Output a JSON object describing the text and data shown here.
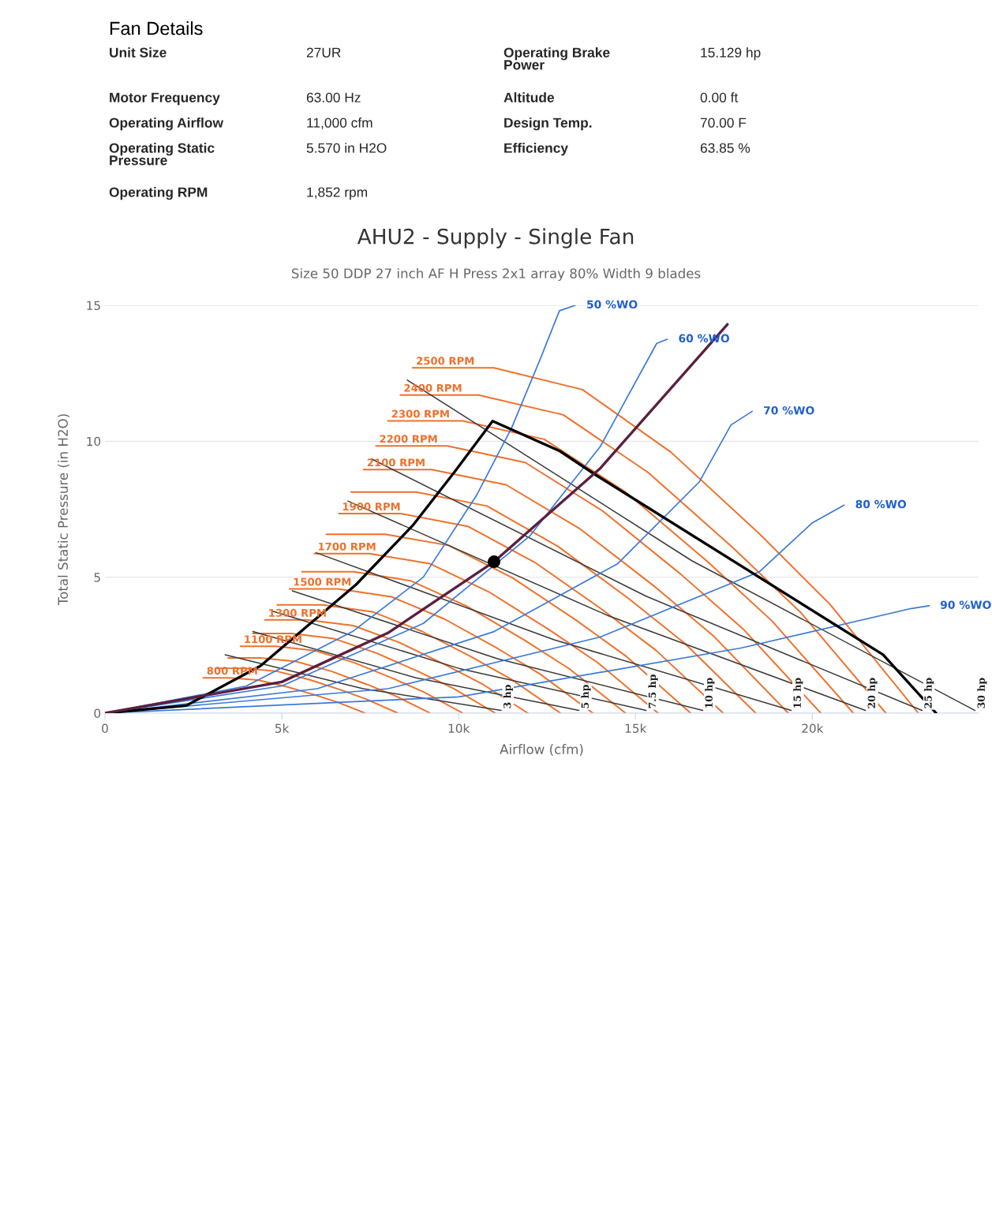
{
  "chart_data": {
    "type": "line",
    "title": "AHU2 - Supply - Single Fan",
    "subtitle": "Size 50 DDP 27 inch AF H Press 2x1 array 80% Width 9 blades",
    "xlabel": "Airflow (cfm)",
    "ylabel": "Total Static Pressure (in H2O)",
    "xlim": [
      0,
      24700
    ],
    "ylim": [
      0,
      15
    ],
    "xticks": [
      0,
      {
        "value": 5000,
        "label": "5k"
      },
      {
        "value": 10000,
        "label": "10k"
      },
      {
        "value": 15000,
        "label": "15k"
      },
      {
        "value": 20000,
        "label": "20k"
      }
    ],
    "yticks": [
      0,
      5,
      10,
      15
    ],
    "grid": "y",
    "annotations": [
      "Fan Details",
      "Unit Size",
      "27UR",
      "Motor Frequency",
      "63.00 Hz",
      "Operating Airflow",
      "11,000 cfm",
      "Operating Static Pressure",
      "5.570 in H2O",
      "Operating RPM",
      "1,852 rpm",
      "Operating Brake Power",
      "15.129 hp",
      "Altitude",
      "0.00 ft",
      "Design Temp.",
      "70.00 F",
      "Efficiency",
      "63.85 %"
    ],
    "series": [
      {
        "name": "2500 RPM",
        "color": "#f0702a",
        "x": [
          8700,
          11000,
          13500,
          16000,
          18500,
          20500,
          23000
        ],
        "values": [
          12.7,
          12.7,
          11.9,
          9.6,
          6.6,
          4.0,
          0
        ]
      },
      {
        "name": "2400 RPM",
        "color": "#f0702a",
        "x": [
          8350,
          10560,
          12960,
          15360,
          17760,
          19680,
          22080
        ],
        "values": [
          11.7,
          11.7,
          10.97,
          8.85,
          6.08,
          3.69,
          0
        ]
      },
      {
        "name": "2300 RPM",
        "color": "#f0702a",
        "x": [
          8000,
          10120,
          12420,
          14720,
          17020,
          18860,
          21160
        ],
        "values": [
          10.75,
          10.75,
          10.07,
          8.13,
          5.59,
          3.39,
          0
        ]
      },
      {
        "name": "2200 RPM",
        "color": "#f0702a",
        "x": [
          7660,
          9680,
          11880,
          14080,
          16280,
          18040,
          20240
        ],
        "values": [
          9.83,
          9.83,
          9.22,
          7.43,
          5.11,
          3.1,
          0
        ]
      },
      {
        "name": "2100 RPM",
        "color": "#f0702a",
        "x": [
          7310,
          9240,
          11340,
          13440,
          15540,
          17220,
          19320
        ],
        "values": [
          8.96,
          8.96,
          8.4,
          6.77,
          4.66,
          2.82,
          0
        ]
      },
      {
        "color": "#f0702a",
        "x": [
          6960,
          8800,
          10800,
          12800,
          14800,
          16400,
          18400
        ],
        "values": [
          8.13,
          8.13,
          7.62,
          6.14,
          4.22,
          2.56,
          0
        ]
      },
      {
        "name": "1900 RPM",
        "color": "#f0702a",
        "x": [
          6610,
          8360,
          10260,
          12160,
          14060,
          15580,
          17480
        ],
        "values": [
          7.34,
          7.34,
          6.87,
          5.54,
          3.81,
          2.31,
          0
        ]
      },
      {
        "color": "#f0702a",
        "x": [
          6260,
          7920,
          9720,
          11520,
          13320,
          14760,
          16560
        ],
        "values": [
          6.58,
          6.58,
          6.17,
          4.98,
          3.42,
          2.07,
          0
        ]
      },
      {
        "name": "1700 RPM",
        "color": "#f0702a",
        "x": [
          5920,
          7480,
          9180,
          10880,
          12580,
          13940,
          15640
        ],
        "values": [
          5.87,
          5.87,
          5.5,
          4.44,
          3.05,
          1.85,
          0
        ]
      },
      {
        "color": "#f0702a",
        "x": [
          5570,
          7040,
          8640,
          10240,
          11840,
          13120,
          14720
        ],
        "values": [
          5.2,
          5.2,
          4.87,
          3.93,
          2.7,
          1.64,
          0
        ]
      },
      {
        "name": "1500 RPM",
        "color": "#f0702a",
        "x": [
          5220,
          6600,
          8100,
          9600,
          11100,
          12300,
          13800
        ],
        "values": [
          4.57,
          4.57,
          4.28,
          3.46,
          2.38,
          1.44,
          0
        ]
      },
      {
        "color": "#f0702a",
        "x": [
          4870,
          6160,
          7560,
          8960,
          10360,
          11480,
          12880
        ],
        "values": [
          3.98,
          3.98,
          3.73,
          3.01,
          2.07,
          1.25,
          0
        ]
      },
      {
        "name": "1300 RPM",
        "color": "#f0702a",
        "x": [
          4520,
          5720,
          7020,
          8320,
          9620,
          10660,
          11960
        ],
        "values": [
          3.43,
          3.43,
          3.22,
          2.6,
          1.78,
          1.08,
          0
        ]
      },
      {
        "color": "#f0702a",
        "x": [
          4180,
          5280,
          6480,
          7680,
          8880,
          9840,
          11040
        ],
        "values": [
          2.93,
          2.93,
          2.74,
          2.21,
          1.52,
          0.92,
          0
        ]
      },
      {
        "name": "1100 RPM",
        "color": "#f0702a",
        "x": [
          3830,
          4840,
          5940,
          7040,
          8140,
          9020,
          10120
        ],
        "values": [
          2.46,
          2.46,
          2.3,
          1.86,
          1.28,
          0.77,
          0
        ]
      },
      {
        "color": "#f0702a",
        "x": [
          3480,
          4400,
          5400,
          6400,
          7400,
          8200,
          9200
        ],
        "values": [
          2.03,
          2.03,
          1.9,
          1.54,
          1.06,
          0.64,
          0
        ]
      },
      {
        "color": "#f0702a",
        "x": [
          3130,
          3960,
          4860,
          5760,
          6660,
          7380,
          8280
        ],
        "values": [
          1.65,
          1.65,
          1.54,
          1.24,
          0.86,
          0.52,
          0
        ]
      },
      {
        "name": "800 RPM",
        "color": "#f0702a",
        "x": [
          2780,
          3520,
          4320,
          5120,
          5920,
          6560,
          7360
        ],
        "values": [
          1.3,
          1.3,
          1.22,
          0.98,
          0.68,
          0.41,
          0
        ]
      },
      {
        "name": "3 hp",
        "color": "#3a3a3a",
        "x": [
          3400,
          7300,
          11200
        ],
        "values": [
          2.15,
          0.9,
          0.1
        ]
      },
      {
        "name": "5 hp",
        "color": "#3a3a3a",
        "x": [
          4180,
          8800,
          13400
        ],
        "values": [
          3.0,
          1.3,
          0.1
        ]
      },
      {
        "name": "7.5 hp",
        "color": "#3a3a3a",
        "x": [
          4740,
          10000,
          15300
        ],
        "values": [
          3.75,
          1.65,
          0.1
        ]
      },
      {
        "name": "10 hp",
        "color": "#3a3a3a",
        "x": [
          5300,
          11100,
          16900
        ],
        "values": [
          4.5,
          2.0,
          0.1
        ]
      },
      {
        "name": "15 hp",
        "color": "#3a3a3a",
        "x": [
          5970,
          12700,
          19400
        ],
        "values": [
          5.9,
          2.7,
          0.1
        ]
      },
      {
        "name": "20 hp",
        "color": "#3a3a3a",
        "x": [
          6870,
          14200,
          21500
        ],
        "values": [
          7.8,
          3.6,
          0.1
        ]
      },
      {
        "name": "25 hp",
        "color": "#3a3a3a",
        "x": [
          7540,
          15300,
          23100
        ],
        "values": [
          9.35,
          4.3,
          0.1
        ]
      },
      {
        "name": "30 hp",
        "color": "#3a3a3a",
        "x": [
          8550,
          16600,
          24600
        ],
        "values": [
          12.25,
          5.6,
          0.1
        ]
      },
      {
        "name": "50 %WO",
        "color": "#3a78d8",
        "x": [
          0,
          4000,
          7000,
          9000,
          10500,
          11500,
          12300,
          12850,
          13300
        ],
        "values": [
          0,
          1.0,
          3.0,
          5.0,
          8.0,
          10.5,
          13.0,
          14.8,
          15
        ]
      },
      {
        "name": "60 %WO",
        "color": "#3a78d8",
        "x": [
          0,
          5000,
          9000,
          12000,
          14000,
          15600,
          15900
        ],
        "values": [
          0,
          1.0,
          3.3,
          6.5,
          9.8,
          13.6,
          13.75
        ]
      },
      {
        "name": "70 %WO",
        "color": "#3a78d8",
        "x": [
          0,
          6000,
          11000,
          14500,
          16800,
          17700,
          18300
        ],
        "values": [
          0,
          0.9,
          3.0,
          5.5,
          8.5,
          10.6,
          11.1
        ]
      },
      {
        "name": "80 %WO",
        "color": "#3a78d8",
        "x": [
          0,
          8000,
          14000,
          18500,
          20000,
          20900
        ],
        "values": [
          0,
          0.9,
          2.8,
          5.2,
          7.0,
          7.65
        ]
      },
      {
        "name": "90 %WO",
        "color": "#3a78d8",
        "x": [
          0,
          10000,
          18000,
          22800,
          23300
        ],
        "values": [
          0,
          0.6,
          2.4,
          3.85,
          3.95
        ]
      },
      {
        "color": "#000000",
        "x": [
          0,
          2300,
          4400,
          7100,
          8700,
          9900,
          10960,
          12860,
          13900,
          22000,
          23500
        ],
        "values": [
          0,
          0.28,
          1.74,
          4.73,
          6.9,
          8.9,
          10.74,
          9.64,
          8.74,
          2.15,
          0
        ]
      },
      {
        "color": "#5b1f3f",
        "x": [
          0,
          5000,
          8000,
          11000,
          14000,
          17600
        ],
        "values": [
          0,
          1.15,
          2.95,
          5.57,
          9.0,
          14.3
        ]
      },
      {
        "type": "scatter",
        "marker": "circle",
        "color": "#000000",
        "x": [
          11000
        ],
        "values": [
          5.57
        ]
      }
    ]
  }
}
